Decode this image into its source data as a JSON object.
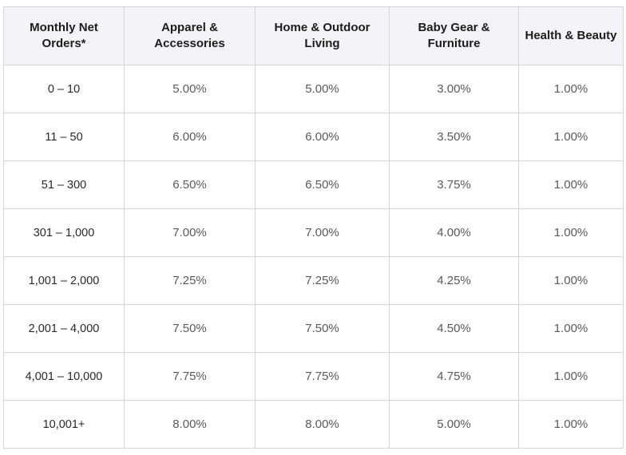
{
  "table": {
    "headers": [
      "Monthly Net Orders*",
      "Apparel & Accessories",
      "Home & Outdoor Living",
      "Baby Gear & Furniture",
      "Health & Beauty"
    ],
    "rows": [
      [
        "0 – 10",
        "5.00%",
        "5.00%",
        "3.00%",
        "1.00%"
      ],
      [
        "11 – 50",
        "6.00%",
        "6.00%",
        "3.50%",
        "1.00%"
      ],
      [
        "51 – 300",
        "6.50%",
        "6.50%",
        "3.75%",
        "1.00%"
      ],
      [
        "301 – 1,000",
        "7.00%",
        "7.00%",
        "4.00%",
        "1.00%"
      ],
      [
        "1,001 – 2,000",
        "7.25%",
        "7.25%",
        "4.25%",
        "1.00%"
      ],
      [
        "2,001 – 4,000",
        "7.50%",
        "7.50%",
        "4.50%",
        "1.00%"
      ],
      [
        "4,001 – 10,000",
        "7.75%",
        "7.75%",
        "4.75%",
        "1.00%"
      ],
      [
        "10,001+",
        "8.00%",
        "8.00%",
        "5.00%",
        "1.00%"
      ]
    ]
  }
}
